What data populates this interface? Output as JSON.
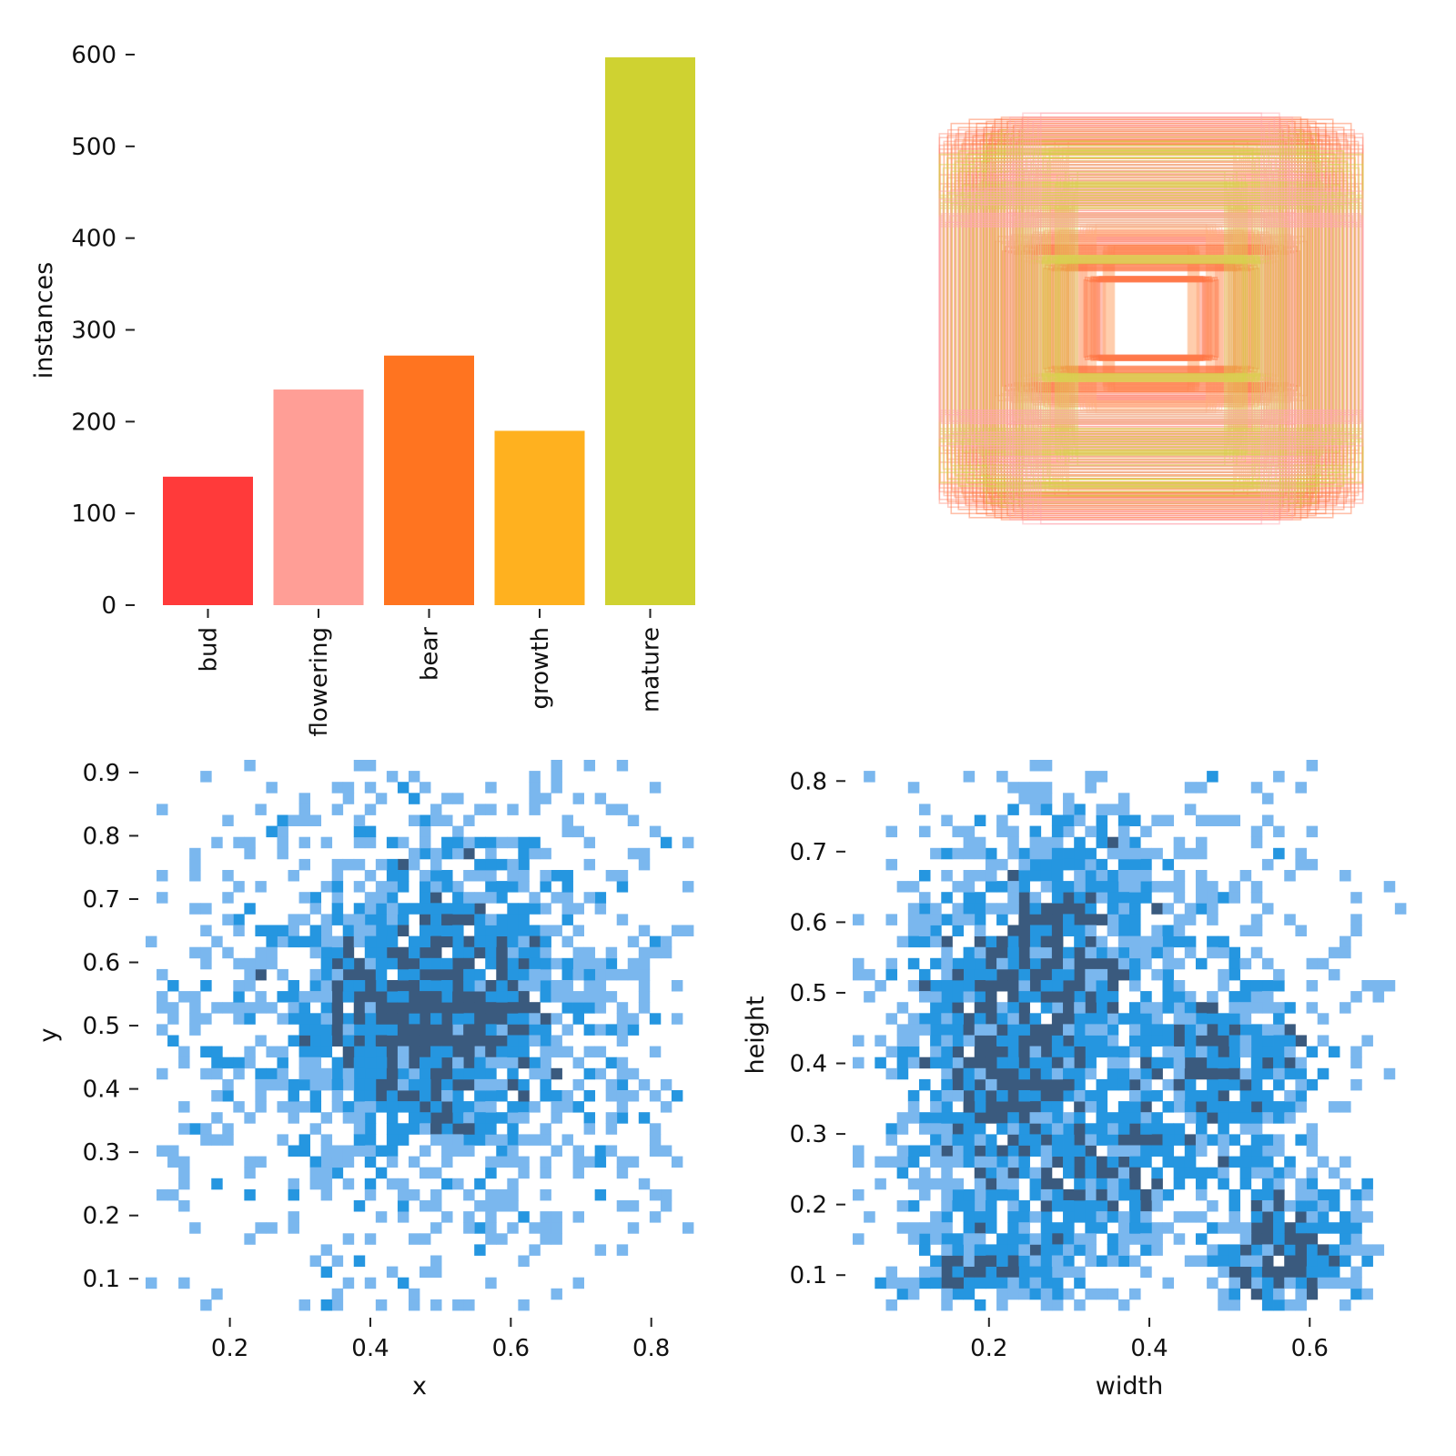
{
  "chart_data": [
    {
      "type": "bar",
      "categories": [
        "bud",
        "flowering",
        "bear",
        "growth",
        "mature"
      ],
      "values": [
        140,
        235,
        272,
        190,
        597
      ],
      "colors": [
        "#ff3a3a",
        "#ff9e96",
        "#ff7420",
        "#ffb11f",
        "#cfd231"
      ],
      "xlabel": "",
      "ylabel": "instances",
      "yticks": [
        0,
        100,
        200,
        300,
        400,
        500,
        600
      ],
      "ylim": [
        0,
        600
      ],
      "grid": false
    },
    {
      "type": "scatter",
      "description": "overlay of normalized bounding-box outlines centered on the canvas, colored by class",
      "series": [
        {
          "color": "#ff8f7a",
          "boxes": [
            [
              0.35,
              0.3
            ],
            [
              0.25,
              0.2
            ],
            [
              0.5,
              0.42
            ],
            [
              0.6,
              0.55
            ],
            [
              0.8,
              0.78
            ],
            [
              0.95,
              0.9
            ],
            [
              0.7,
              0.9
            ],
            [
              0.9,
              0.7
            ],
            [
              0.42,
              0.6
            ],
            [
              0.65,
              0.4
            ]
          ]
        },
        {
          "color": "#ffb07a",
          "boxes": [
            [
              0.3,
              0.45
            ],
            [
              0.55,
              0.3
            ],
            [
              0.75,
              0.6
            ],
            [
              0.45,
              0.85
            ],
            [
              0.88,
              0.85
            ],
            [
              0.2,
              0.35
            ],
            [
              0.62,
              0.72
            ]
          ]
        },
        {
          "color": "#ff7340",
          "boxes": [
            [
              0.7,
              0.96
            ],
            [
              0.45,
              0.26
            ],
            [
              0.28,
              0.2
            ],
            [
              0.62,
              0.35
            ],
            [
              0.85,
              0.95
            ]
          ]
        },
        {
          "color": "#d5d24a",
          "boxes": [
            [
              0.5,
              0.3
            ],
            [
              0.6,
              0.5
            ],
            [
              0.8,
              0.65
            ],
            [
              0.9,
              0.8
            ],
            [
              0.7,
              0.9
            ],
            [
              0.4,
              0.7
            ],
            [
              0.95,
              0.6
            ],
            [
              0.55,
              0.8
            ]
          ]
        },
        {
          "color": "#ffa6b0",
          "boxes": [
            [
              0.98,
              0.5
            ],
            [
              0.9,
              0.62
            ],
            [
              0.75,
              0.75
            ],
            [
              0.6,
              0.98
            ]
          ]
        }
      ],
      "grid": false
    },
    {
      "type": "heatmap",
      "xlabel": "x",
      "ylabel": "y",
      "xticks": [
        0.2,
        0.4,
        0.6,
        0.8
      ],
      "yticks": [
        0.1,
        0.2,
        0.3,
        0.4,
        0.5,
        0.6,
        0.7,
        0.8,
        0.9
      ],
      "xlim": [
        0.08,
        0.86
      ],
      "ylim": [
        0.05,
        0.92
      ],
      "bins": [
        50,
        50
      ],
      "levels": [
        "#7ab7ee",
        "#2596e0",
        "#3a5a7e"
      ],
      "clusters": [
        {
          "cx": 0.49,
          "cy": 0.52,
          "sx": 0.09,
          "sy": 0.11,
          "n": 950
        },
        {
          "cx": 0.49,
          "cy": 0.52,
          "sx": 0.19,
          "sy": 0.2,
          "n": 850
        },
        {
          "cx": 0.49,
          "cy": 0.5,
          "sx": 0.27,
          "sy": 0.26,
          "n": 420
        }
      ],
      "grid": false
    },
    {
      "type": "heatmap",
      "xlabel": "width",
      "ylabel": "height",
      "xticks": [
        0.2,
        0.4,
        0.6
      ],
      "yticks": [
        0.1,
        0.2,
        0.3,
        0.4,
        0.5,
        0.6,
        0.7,
        0.8
      ],
      "xlim": [
        0.03,
        0.72
      ],
      "ylim": [
        0.05,
        0.83
      ],
      "bins": [
        50,
        50
      ],
      "levels": [
        "#7ab7ee",
        "#2596e0",
        "#3a5a7e"
      ],
      "clusters": [
        {
          "cx": 0.22,
          "cy": 0.43,
          "sx": 0.07,
          "sy": 0.14,
          "n": 1150
        },
        {
          "cx": 0.32,
          "cy": 0.6,
          "sx": 0.06,
          "sy": 0.09,
          "n": 320
        },
        {
          "cx": 0.5,
          "cy": 0.38,
          "sx": 0.06,
          "sy": 0.07,
          "n": 380
        },
        {
          "cx": 0.57,
          "cy": 0.14,
          "sx": 0.05,
          "sy": 0.05,
          "n": 330
        },
        {
          "cx": 0.2,
          "cy": 0.12,
          "sx": 0.07,
          "sy": 0.04,
          "n": 230
        },
        {
          "cx": 0.35,
          "cy": 0.25,
          "sx": 0.06,
          "sy": 0.06,
          "n": 240
        },
        {
          "cx": 0.4,
          "cy": 0.5,
          "sx": 0.15,
          "sy": 0.2,
          "n": 520
        }
      ],
      "grid": false
    }
  ]
}
